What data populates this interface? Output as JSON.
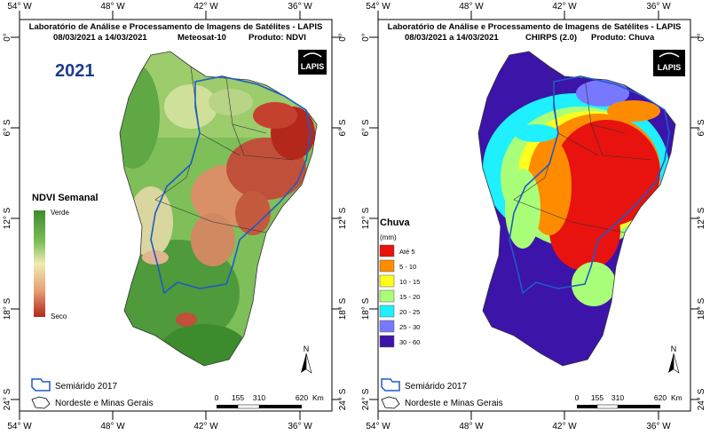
{
  "panels": [
    {
      "title": "Laboratório de Análise e Processamento de Imagens de Satélites - LAPIS",
      "date_range": "08/03/2021  a  14/03/2021",
      "sensor": "Meteosat-10",
      "product": "Produto: NDVI",
      "year_label": "2021",
      "logo_text": "LAPIS",
      "legend": {
        "title": "NDVI Semanal",
        "high_label": "Verde",
        "low_label": "Seco"
      }
    },
    {
      "title": "Laboratório de Análise e Processamento de Imagens de Satélites - LAPIS",
      "date_range": "08/03/2021  a  14/03/2021",
      "sensor": "CHIRPS (2.0)",
      "product": "Produto: Chuva",
      "logo_text": "LAPIS",
      "legend": {
        "title": "Chuva",
        "unit": "(mm)",
        "classes": [
          {
            "label": "Até 5",
            "color": "#e8120f"
          },
          {
            "label": "5 - 10",
            "color": "#ff8c00"
          },
          {
            "label": "10 - 15",
            "color": "#ffff1e"
          },
          {
            "label": "15 - 20",
            "color": "#aaff78"
          },
          {
            "label": "20 - 25",
            "color": "#1ef0ff"
          },
          {
            "label": "25 - 30",
            "color": "#7878ff"
          },
          {
            "label": "30 - 60",
            "color": "#3c14aa"
          }
        ]
      }
    }
  ],
  "axes": {
    "top_ticks": [
      "54° W",
      "48° W",
      "42° W",
      "36° W"
    ],
    "bottom_ticks": [
      "54° W",
      "48° W",
      "42° W",
      "36° W"
    ],
    "side_ticks": [
      "0°",
      "6° S",
      "12° S",
      "18° S",
      "24° S"
    ]
  },
  "map_legend": {
    "semiarido": "Semiárido 2017",
    "nordeste": "Nordeste e Minas Gerais"
  },
  "scalebar": {
    "ticks": [
      "0",
      "155",
      "310",
      "620"
    ],
    "unit": "Km"
  },
  "north_label": "N",
  "colors": {
    "ndvi_green": "#3c8c2d",
    "ndvi_light": "#a9cf77",
    "ndvi_dry": "#b4281c",
    "semiarido_outline": "#1e5ac8",
    "frame": "#000000"
  }
}
